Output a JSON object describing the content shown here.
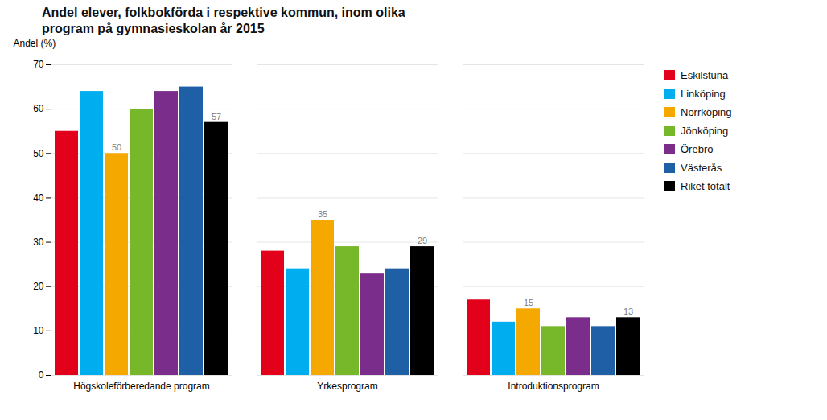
{
  "chart_data": {
    "type": "bar",
    "title": "Andel elever, folkbokförda i respektive kommun,  inom olika\nprogram på gymnasieskolan år 2015",
    "ylabel": "Andel (%)",
    "categories": [
      "Högskoleförberedande program",
      "Yrkesprogram",
      "Introduktionsprogram"
    ],
    "series": [
      {
        "name": "Eskilstuna",
        "color": "#e2001a",
        "values": [
          55,
          28,
          17
        ]
      },
      {
        "name": "Linköping",
        "color": "#00adef",
        "values": [
          64,
          24,
          12
        ]
      },
      {
        "name": "Norrköping",
        "color": "#f5a800",
        "values": [
          50,
          35,
          15
        ],
        "data_labels": true
      },
      {
        "name": "Jönköping",
        "color": "#76b82a",
        "values": [
          60,
          29,
          11
        ]
      },
      {
        "name": "Örebro",
        "color": "#7b2d8b",
        "values": [
          64,
          23,
          13
        ]
      },
      {
        "name": "Västerås",
        "color": "#1f5fa6",
        "values": [
          65,
          24,
          11
        ]
      },
      {
        "name": "Riket totalt",
        "color": "#000000",
        "values": [
          57,
          29,
          13
        ],
        "data_labels": true
      }
    ],
    "ylim": [
      0,
      70
    ],
    "yticks": [
      0,
      10,
      20,
      30,
      40,
      50,
      60,
      70
    ],
    "grid": true,
    "legend": "right"
  }
}
